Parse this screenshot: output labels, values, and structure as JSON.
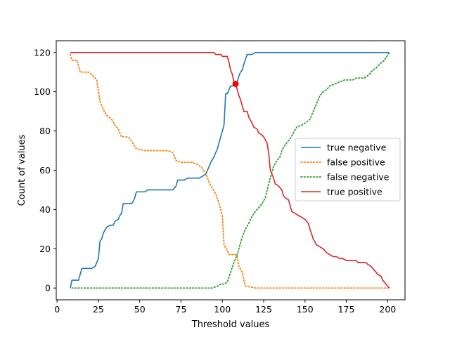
{
  "chart_data": {
    "type": "line",
    "title": "",
    "xlabel": "Threshold values",
    "ylabel": "Count of values",
    "xlim": [
      -0.5,
      210.5
    ],
    "ylim": [
      -6,
      126
    ],
    "xticks": [
      0,
      25,
      50,
      75,
      100,
      125,
      150,
      175,
      200
    ],
    "yticks": [
      0,
      20,
      40,
      60,
      80,
      100,
      120
    ],
    "grid": false,
    "legend_position": "center-right",
    "series": [
      {
        "name": "true negative",
        "color": "#1f77b4",
        "dash": "solid",
        "points": [
          [
            8,
            0
          ],
          [
            9,
            4
          ],
          [
            13,
            4
          ],
          [
            15,
            10
          ],
          [
            21,
            10
          ],
          [
            23,
            11
          ],
          [
            25,
            15
          ],
          [
            26,
            24
          ],
          [
            27,
            25
          ],
          [
            28,
            28
          ],
          [
            30,
            31
          ],
          [
            32,
            32
          ],
          [
            34,
            32
          ],
          [
            35,
            34
          ],
          [
            37,
            35
          ],
          [
            38,
            37
          ],
          [
            39,
            38
          ],
          [
            40,
            43
          ],
          [
            45,
            43
          ],
          [
            46,
            44
          ],
          [
            47,
            46
          ],
          [
            48,
            49
          ],
          [
            53,
            49
          ],
          [
            55,
            50
          ],
          [
            70,
            50
          ],
          [
            72,
            52
          ],
          [
            73,
            55
          ],
          [
            77,
            55
          ],
          [
            79,
            56
          ],
          [
            86,
            56
          ],
          [
            88,
            57
          ],
          [
            90,
            58
          ],
          [
            91,
            60
          ],
          [
            92,
            62
          ],
          [
            93,
            64
          ],
          [
            95,
            67
          ],
          [
            96,
            69
          ],
          [
            97,
            71
          ],
          [
            98,
            74
          ],
          [
            99,
            77
          ],
          [
            100,
            80
          ],
          [
            101,
            83
          ],
          [
            102,
            99
          ],
          [
            103,
            99
          ],
          [
            104,
            101
          ],
          [
            105,
            103
          ],
          [
            108,
            103
          ],
          [
            109,
            105
          ],
          [
            110,
            108
          ],
          [
            111,
            110
          ],
          [
            112,
            111
          ],
          [
            113,
            114
          ],
          [
            115,
            119
          ],
          [
            118,
            119
          ],
          [
            120,
            120
          ],
          [
            201,
            120
          ]
        ]
      },
      {
        "name": "false positive",
        "color": "#ff7f0e",
        "dash": "dotted",
        "points": [
          [
            8,
            119
          ],
          [
            9,
            116
          ],
          [
            12,
            116
          ],
          [
            14,
            110
          ],
          [
            19,
            110
          ],
          [
            22,
            108
          ],
          [
            24,
            106
          ],
          [
            26,
            95
          ],
          [
            28,
            91
          ],
          [
            30,
            88
          ],
          [
            33,
            86
          ],
          [
            35,
            83
          ],
          [
            37,
            81
          ],
          [
            39,
            77
          ],
          [
            43,
            77
          ],
          [
            45,
            75
          ],
          [
            47,
            72
          ],
          [
            48,
            71
          ],
          [
            53,
            70
          ],
          [
            67,
            70
          ],
          [
            70,
            69
          ],
          [
            72,
            65
          ],
          [
            75,
            64
          ],
          [
            82,
            64
          ],
          [
            85,
            63
          ],
          [
            88,
            61
          ],
          [
            90,
            58
          ],
          [
            93,
            52
          ],
          [
            96,
            48
          ],
          [
            98,
            43
          ],
          [
            100,
            37
          ],
          [
            101,
            22
          ],
          [
            103,
            19
          ],
          [
            104,
            17
          ],
          [
            108,
            17
          ],
          [
            109,
            16
          ],
          [
            110,
            11
          ],
          [
            112,
            8
          ],
          [
            113,
            4
          ],
          [
            114,
            1
          ],
          [
            120,
            0
          ],
          [
            201,
            0
          ]
        ]
      },
      {
        "name": "false negative",
        "color": "#2ca02c",
        "dash": "dotted",
        "points": [
          [
            9,
            0
          ],
          [
            94,
            0
          ],
          [
            97,
            1
          ],
          [
            99,
            2
          ],
          [
            101,
            2
          ],
          [
            103,
            3
          ],
          [
            105,
            8
          ],
          [
            107,
            13
          ],
          [
            109,
            17
          ],
          [
            110,
            20
          ],
          [
            112,
            26
          ],
          [
            114,
            30
          ],
          [
            116,
            33
          ],
          [
            117,
            35
          ],
          [
            119,
            38
          ],
          [
            121,
            40
          ],
          [
            123,
            42
          ],
          [
            124,
            43
          ],
          [
            126,
            46
          ],
          [
            128,
            53
          ],
          [
            130,
            59
          ],
          [
            131,
            62
          ],
          [
            133,
            65
          ],
          [
            135,
            67
          ],
          [
            136,
            70
          ],
          [
            138,
            73
          ],
          [
            141,
            76
          ],
          [
            143,
            79
          ],
          [
            145,
            82
          ],
          [
            148,
            83
          ],
          [
            150,
            84
          ],
          [
            153,
            86
          ],
          [
            155,
            90
          ],
          [
            157,
            94
          ],
          [
            159,
            98
          ],
          [
            161,
            100
          ],
          [
            163,
            101
          ],
          [
            165,
            103
          ],
          [
            168,
            104
          ],
          [
            171,
            105
          ],
          [
            174,
            106
          ],
          [
            176,
            106
          ],
          [
            179,
            106
          ],
          [
            181,
            107
          ],
          [
            186,
            107
          ],
          [
            189,
            109
          ],
          [
            191,
            111
          ],
          [
            193,
            112
          ],
          [
            195,
            114
          ],
          [
            198,
            116
          ],
          [
            201,
            120
          ]
        ]
      },
      {
        "name": "true positive",
        "color": "#d62728",
        "dash": "solid",
        "points": [
          [
            8,
            120
          ],
          [
            95,
            120
          ],
          [
            96,
            119
          ],
          [
            99,
            119
          ],
          [
            100,
            118
          ],
          [
            103,
            118
          ],
          [
            104,
            115
          ],
          [
            105,
            111
          ],
          [
            106,
            109
          ],
          [
            107,
            105
          ],
          [
            108,
            104
          ],
          [
            110,
            98
          ],
          [
            111,
            96
          ],
          [
            112,
            93
          ],
          [
            113,
            90
          ],
          [
            115,
            90
          ],
          [
            116,
            87
          ],
          [
            118,
            84
          ],
          [
            119,
            82
          ],
          [
            121,
            81
          ],
          [
            122,
            79
          ],
          [
            124,
            78
          ],
          [
            125,
            77
          ],
          [
            127,
            74
          ],
          [
            128,
            69
          ],
          [
            129,
            60
          ],
          [
            131,
            56
          ],
          [
            132,
            53
          ],
          [
            134,
            52
          ],
          [
            136,
            50
          ],
          [
            137,
            47
          ],
          [
            138,
            46
          ],
          [
            140,
            45
          ],
          [
            141,
            42
          ],
          [
            142,
            39
          ],
          [
            144,
            38
          ],
          [
            146,
            37
          ],
          [
            148,
            36
          ],
          [
            150,
            35
          ],
          [
            152,
            33
          ],
          [
            153,
            30
          ],
          [
            155,
            25
          ],
          [
            157,
            22
          ],
          [
            159,
            21
          ],
          [
            161,
            20
          ],
          [
            163,
            18
          ],
          [
            165,
            17
          ],
          [
            167,
            16
          ],
          [
            169,
            16
          ],
          [
            171,
            15
          ],
          [
            173,
            15
          ],
          [
            175,
            14
          ],
          [
            177,
            14
          ],
          [
            181,
            14
          ],
          [
            182,
            13
          ],
          [
            187,
            13
          ],
          [
            188,
            12
          ],
          [
            190,
            11
          ],
          [
            192,
            9
          ],
          [
            194,
            7
          ],
          [
            196,
            6
          ],
          [
            197,
            4
          ],
          [
            199,
            2
          ],
          [
            201,
            0
          ]
        ]
      }
    ],
    "markers": [
      {
        "name": "crossover-point",
        "x": 108,
        "y": 104,
        "color": "#ff0000"
      }
    ]
  }
}
